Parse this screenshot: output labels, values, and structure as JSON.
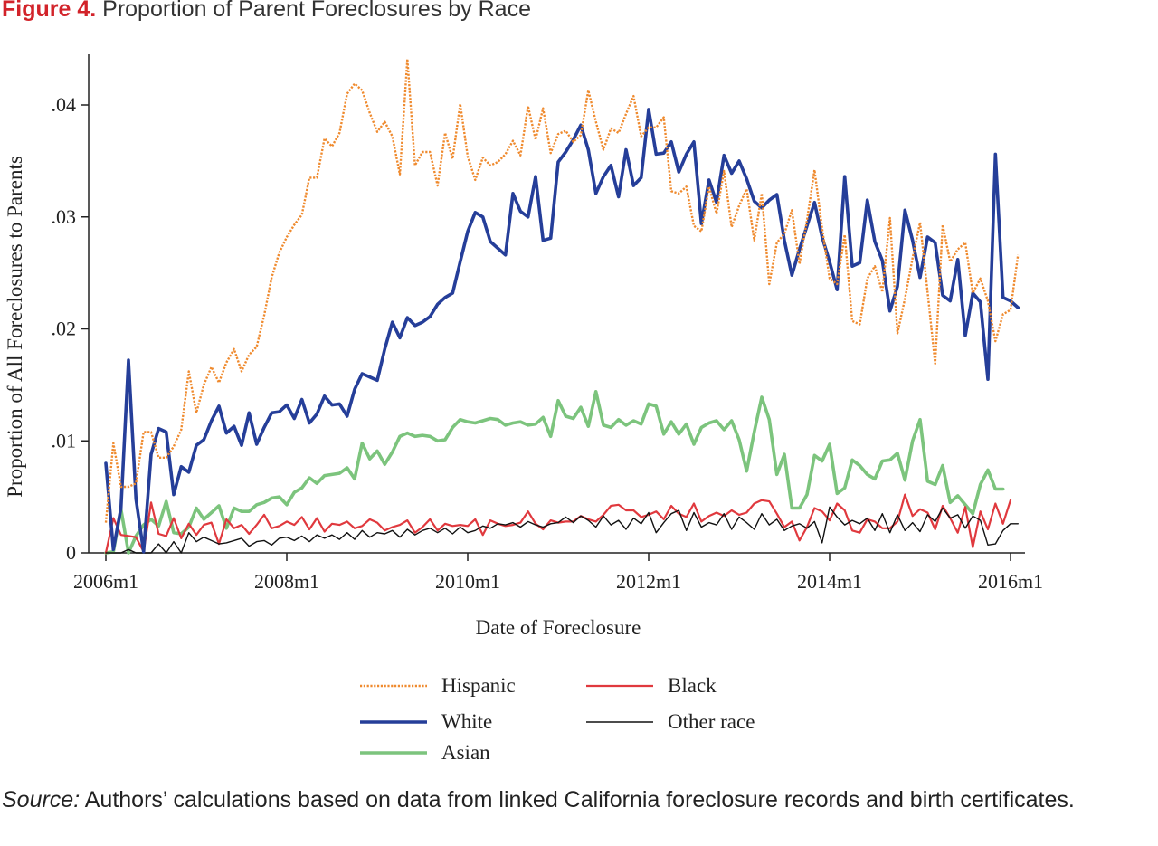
{
  "figure": {
    "label": "Figure 4.",
    "title": "Proportion of Parent Foreclosures by Race"
  },
  "source": {
    "label": "Source:",
    "text": "Authors’ calculations based on data from linked California foreclosure records and birth certificates."
  },
  "chart_data": {
    "type": "line",
    "xlabel": "Date of Foreclosure",
    "ylabel": "Proportion of All Foreclosures to Parents",
    "x_start": "2006m1",
    "x_end": "2015m12",
    "x_ticks": [
      "2006m1",
      "2008m1",
      "2010m1",
      "2012m1",
      "2014m1",
      "2016m1"
    ],
    "y_ticks": [
      0,
      0.01,
      0.02,
      0.03,
      0.04
    ],
    "y_tick_labels": [
      "0",
      ".01",
      ".02",
      ".03",
      ".04"
    ],
    "ylim": [
      0,
      0.0445
    ],
    "grid": false,
    "legend_position": "bottom",
    "series": [
      {
        "name": "Hispanic",
        "color": "#ef8a2e",
        "style": "dotted",
        "values": [
          0.0027,
          0.0098,
          0.0059,
          0.0059,
          0.0062,
          0.0108,
          0.0108,
          0.0085,
          0.0085,
          0.0095,
          0.011,
          0.0162,
          0.0125,
          0.015,
          0.0166,
          0.0152,
          0.017,
          0.0182,
          0.0162,
          0.0177,
          0.0184,
          0.0212,
          0.0246,
          0.0268,
          0.0282,
          0.0293,
          0.0302,
          0.0335,
          0.0335,
          0.037,
          0.0363,
          0.0375,
          0.041,
          0.0419,
          0.0413,
          0.0393,
          0.0376,
          0.0385,
          0.0372,
          0.0338,
          0.0441,
          0.0346,
          0.0358,
          0.0358,
          0.0328,
          0.0375,
          0.0352,
          0.0401,
          0.0354,
          0.0333,
          0.0353,
          0.0346,
          0.0349,
          0.0356,
          0.0368,
          0.0355,
          0.0399,
          0.0369,
          0.0397,
          0.0357,
          0.0374,
          0.0377,
          0.0367,
          0.0373,
          0.0413,
          0.0385,
          0.036,
          0.0379,
          0.0375,
          0.0392,
          0.0408,
          0.0372,
          0.038,
          0.038,
          0.0389,
          0.0323,
          0.0321,
          0.0327,
          0.0292,
          0.0287,
          0.0327,
          0.0303,
          0.0341,
          0.0291,
          0.031,
          0.0325,
          0.0279,
          0.0321,
          0.024,
          0.0277,
          0.0285,
          0.0306,
          0.0258,
          0.0297,
          0.0342,
          0.029,
          0.0245,
          0.024,
          0.0284,
          0.0207,
          0.0204,
          0.0245,
          0.0256,
          0.0233,
          0.0299,
          0.0196,
          0.0227,
          0.0263,
          0.0295,
          0.0233,
          0.0169,
          0.0293,
          0.026,
          0.0271,
          0.0277,
          0.0232,
          0.0245,
          0.0225,
          0.0189,
          0.0213,
          0.0217,
          0.0266
        ]
      },
      {
        "name": "White",
        "color": "#253e99",
        "style": "solid",
        "values": [
          0.008,
          0.0003,
          0.004,
          0.0172,
          0.0048,
          0.0001,
          0.0088,
          0.0111,
          0.0108,
          0.0052,
          0.0077,
          0.0072,
          0.0096,
          0.0101,
          0.0118,
          0.0131,
          0.0107,
          0.0113,
          0.0096,
          0.0125,
          0.0097,
          0.0112,
          0.0125,
          0.0126,
          0.0132,
          0.012,
          0.0137,
          0.0116,
          0.0124,
          0.014,
          0.0132,
          0.0133,
          0.0122,
          0.0146,
          0.016,
          0.0157,
          0.0154,
          0.0182,
          0.0206,
          0.0192,
          0.021,
          0.0203,
          0.0206,
          0.0211,
          0.0222,
          0.0228,
          0.0232,
          0.026,
          0.0287,
          0.0304,
          0.03,
          0.0278,
          0.0272,
          0.0266,
          0.0321,
          0.0305,
          0.03,
          0.0336,
          0.0279,
          0.0281,
          0.0349,
          0.0358,
          0.0369,
          0.0382,
          0.036,
          0.0321,
          0.0336,
          0.0346,
          0.0318,
          0.036,
          0.0328,
          0.0335,
          0.0396,
          0.0356,
          0.0357,
          0.0367,
          0.034,
          0.0356,
          0.0367,
          0.0294,
          0.0333,
          0.0313,
          0.0355,
          0.0339,
          0.035,
          0.0334,
          0.0314,
          0.0308,
          0.0315,
          0.032,
          0.0279,
          0.0248,
          0.0271,
          0.0292,
          0.0313,
          0.0282,
          0.026,
          0.0235,
          0.0336,
          0.0256,
          0.0259,
          0.0315,
          0.0278,
          0.0261,
          0.0216,
          0.0238,
          0.0306,
          0.0279,
          0.0246,
          0.0282,
          0.0277,
          0.023,
          0.0225,
          0.0262,
          0.0194,
          0.0232,
          0.0224,
          0.0155,
          0.0356,
          0.0228,
          0.0225,
          0.0219
        ]
      },
      {
        "name": "Asian",
        "color": "#7cc47d",
        "style": "solid",
        "values": [
          0.0,
          0.0001,
          0.0039,
          0.0,
          0.0015,
          0.0025,
          0.003,
          0.0024,
          0.0046,
          0.0018,
          0.0017,
          0.0023,
          0.004,
          0.003,
          0.0036,
          0.0042,
          0.0022,
          0.004,
          0.0037,
          0.0037,
          0.0043,
          0.0045,
          0.0049,
          0.005,
          0.0043,
          0.0054,
          0.0058,
          0.0067,
          0.0062,
          0.0069,
          0.007,
          0.0071,
          0.0076,
          0.0066,
          0.0098,
          0.0084,
          0.0091,
          0.0079,
          0.009,
          0.0104,
          0.0107,
          0.0104,
          0.0105,
          0.0104,
          0.01,
          0.0101,
          0.0112,
          0.0119,
          0.0117,
          0.0116,
          0.0118,
          0.012,
          0.0119,
          0.0114,
          0.0116,
          0.0117,
          0.0114,
          0.0115,
          0.0121,
          0.0104,
          0.0136,
          0.0122,
          0.012,
          0.013,
          0.0113,
          0.0144,
          0.0114,
          0.0112,
          0.0119,
          0.0114,
          0.0118,
          0.0115,
          0.0133,
          0.0131,
          0.0106,
          0.0117,
          0.0106,
          0.0115,
          0.0097,
          0.0112,
          0.0116,
          0.0118,
          0.011,
          0.0118,
          0.0101,
          0.0073,
          0.0108,
          0.0139,
          0.0119,
          0.007,
          0.0088,
          0.004,
          0.004,
          0.0052,
          0.0087,
          0.0082,
          0.0097,
          0.0053,
          0.0058,
          0.0083,
          0.0078,
          0.007,
          0.0066,
          0.0082,
          0.0083,
          0.0089,
          0.0065,
          0.01,
          0.0119,
          0.0064,
          0.0061,
          0.0078,
          0.0045,
          0.0051,
          0.0043,
          0.0035,
          0.0061,
          0.0074,
          0.0057,
          0.0057
        ]
      },
      {
        "name": "Black",
        "color": "#e0393e",
        "style": "solid",
        "values": [
          0.0,
          0.0031,
          0.0016,
          0.0015,
          0.0014,
          0.0001,
          0.0045,
          0.0017,
          0.0015,
          0.0031,
          0.0013,
          0.0026,
          0.0016,
          0.0025,
          0.0027,
          0.0008,
          0.003,
          0.0022,
          0.0025,
          0.0017,
          0.0025,
          0.0034,
          0.0022,
          0.0024,
          0.0028,
          0.0025,
          0.0032,
          0.0021,
          0.0031,
          0.0019,
          0.0026,
          0.0025,
          0.0028,
          0.0022,
          0.0024,
          0.003,
          0.0027,
          0.002,
          0.0023,
          0.0025,
          0.0029,
          0.0018,
          0.0023,
          0.003,
          0.002,
          0.0026,
          0.0024,
          0.0025,
          0.0024,
          0.003,
          0.0016,
          0.0029,
          0.0026,
          0.0024,
          0.0025,
          0.0027,
          0.0037,
          0.0026,
          0.0021,
          0.0029,
          0.0027,
          0.0028,
          0.0028,
          0.0033,
          0.003,
          0.0028,
          0.0034,
          0.0042,
          0.0043,
          0.0038,
          0.0038,
          0.0032,
          0.0034,
          0.0037,
          0.003,
          0.0042,
          0.0035,
          0.0032,
          0.0044,
          0.0028,
          0.0033,
          0.0036,
          0.0033,
          0.0038,
          0.0034,
          0.0036,
          0.0044,
          0.0047,
          0.0046,
          0.0035,
          0.0023,
          0.0028,
          0.0011,
          0.0023,
          0.004,
          0.0037,
          0.0029,
          0.0044,
          0.0038,
          0.002,
          0.0018,
          0.003,
          0.0028,
          0.0022,
          0.0022,
          0.0028,
          0.0052,
          0.0033,
          0.0039,
          0.0036,
          0.0021,
          0.0042,
          0.0031,
          0.0018,
          0.0041,
          0.0005,
          0.0037,
          0.0021,
          0.0044,
          0.0026,
          0.0047
        ]
      },
      {
        "name": "Other race",
        "color": "#111111",
        "style": "solid",
        "values": [
          0.0,
          0.0,
          0.0,
          0.0003,
          0.0,
          0.0,
          0.0,
          0.0008,
          0.0,
          0.001,
          0.0,
          0.0018,
          0.001,
          0.0014,
          0.0011,
          0.0008,
          0.0009,
          0.0011,
          0.0013,
          0.0006,
          0.001,
          0.0011,
          0.0007,
          0.0013,
          0.0014,
          0.0011,
          0.0015,
          0.001,
          0.0016,
          0.0013,
          0.0016,
          0.0012,
          0.0018,
          0.0012,
          0.002,
          0.0014,
          0.0018,
          0.0017,
          0.002,
          0.0014,
          0.0021,
          0.0016,
          0.002,
          0.0022,
          0.0018,
          0.0022,
          0.0017,
          0.0023,
          0.0018,
          0.002,
          0.0024,
          0.0022,
          0.0026,
          0.0025,
          0.0027,
          0.0023,
          0.0028,
          0.0025,
          0.0023,
          0.0026,
          0.0027,
          0.0032,
          0.0027,
          0.0033,
          0.0029,
          0.0023,
          0.0033,
          0.0025,
          0.0029,
          0.0021,
          0.0031,
          0.0026,
          0.0036,
          0.0018,
          0.0027,
          0.0035,
          0.0038,
          0.002,
          0.0036,
          0.0023,
          0.0027,
          0.0025,
          0.0035,
          0.0021,
          0.0032,
          0.0027,
          0.0021,
          0.0035,
          0.0025,
          0.003,
          0.002,
          0.0024,
          0.0026,
          0.0022,
          0.0028,
          0.0009,
          0.0041,
          0.0032,
          0.0025,
          0.0029,
          0.0026,
          0.0031,
          0.002,
          0.0035,
          0.0018,
          0.0034,
          0.002,
          0.0027,
          0.0019,
          0.0034,
          0.0028,
          0.004,
          0.0031,
          0.0034,
          0.0022,
          0.0033,
          0.0029,
          0.0007,
          0.0008,
          0.002,
          0.0026,
          0.0026
        ]
      }
    ]
  }
}
